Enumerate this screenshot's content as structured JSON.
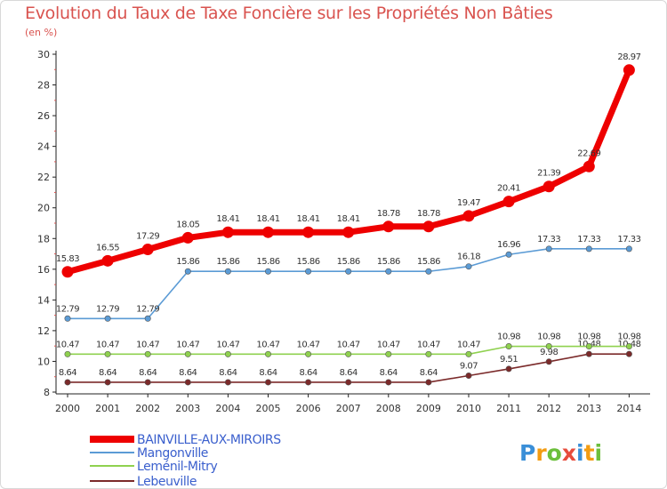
{
  "chart_data": {
    "type": "line",
    "title": "Evolution du Taux de Taxe Foncière sur les Propriétés Non Bâties",
    "unit": "(en %)",
    "categories": [
      "2000",
      "2001",
      "2002",
      "2003",
      "2004",
      "2005",
      "2006",
      "2007",
      "2008",
      "2009",
      "2010",
      "2011",
      "2012",
      "2013",
      "2014"
    ],
    "ylim": [
      8,
      30
    ],
    "yticks": [
      8,
      10,
      12,
      14,
      16,
      18,
      20,
      22,
      24,
      26,
      28,
      30
    ],
    "series": [
      {
        "name": "BAINVILLE-AUX-MIROIRS",
        "color": "#ee0000",
        "values": [
          15.83,
          16.55,
          17.29,
          18.05,
          18.41,
          18.41,
          18.41,
          18.41,
          18.78,
          18.78,
          19.47,
          20.41,
          21.39,
          22.69,
          28.97
        ],
        "labels": [
          "15.83",
          "16.55",
          "17.29",
          "18.05",
          "18.41",
          "18.41",
          "18.41",
          "18.41",
          "18.78",
          "18.78",
          "19.47",
          "20.41",
          "21.39",
          "22.69",
          "28.97"
        ]
      },
      {
        "name": "Mangonville",
        "color": "#5b9bd5",
        "values": [
          12.79,
          12.79,
          12.79,
          15.86,
          15.86,
          15.86,
          15.86,
          15.86,
          15.86,
          15.86,
          16.18,
          16.96,
          17.33,
          17.33,
          17.33
        ],
        "labels": [
          "12.79",
          "12.79",
          "12.79",
          "15.86",
          "15.86",
          "15.86",
          "15.86",
          "15.86",
          "15.86",
          "15.86",
          "16.18",
          "16.96",
          "17.33",
          "17.33",
          "17.33"
        ]
      },
      {
        "name": "Leménil-Mitry",
        "color": "#8fd14f",
        "values": [
          10.47,
          10.47,
          10.47,
          10.47,
          10.47,
          10.47,
          10.47,
          10.47,
          10.47,
          10.47,
          10.47,
          10.98,
          10.98,
          10.98,
          10.98
        ],
        "labels": [
          "10.47",
          "10.47",
          "10.47",
          "10.47",
          "10.47",
          "10.47",
          "10.47",
          "10.47",
          "10.47",
          "10.47",
          "10.47",
          "10.98",
          "10.98",
          "10.98",
          "10.98"
        ]
      },
      {
        "name": "Lebeuville",
        "color": "#7b2a2a",
        "values": [
          8.64,
          8.64,
          8.64,
          8.64,
          8.64,
          8.64,
          8.64,
          8.64,
          8.64,
          8.64,
          9.07,
          9.51,
          9.98,
          10.48,
          10.48
        ],
        "labels": [
          "8.64",
          "8.64",
          "8.64",
          "8.64",
          "8.64",
          "8.64",
          "8.64",
          "8.64",
          "8.64",
          "8.64",
          "9.07",
          "9.51",
          "9.98",
          "10.48",
          "10.48"
        ]
      }
    ],
    "legend_position": "bottom-left",
    "grid": false
  },
  "brand": {
    "letters": [
      "P",
      "r",
      "o",
      "x",
      "i",
      "t",
      "i"
    ],
    "colors": [
      "#3a8fd8",
      "#f39c12",
      "#6cbf3c",
      "#e74c3c",
      "#3a8fd8",
      "#f39c12",
      "#6cbf3c"
    ]
  }
}
